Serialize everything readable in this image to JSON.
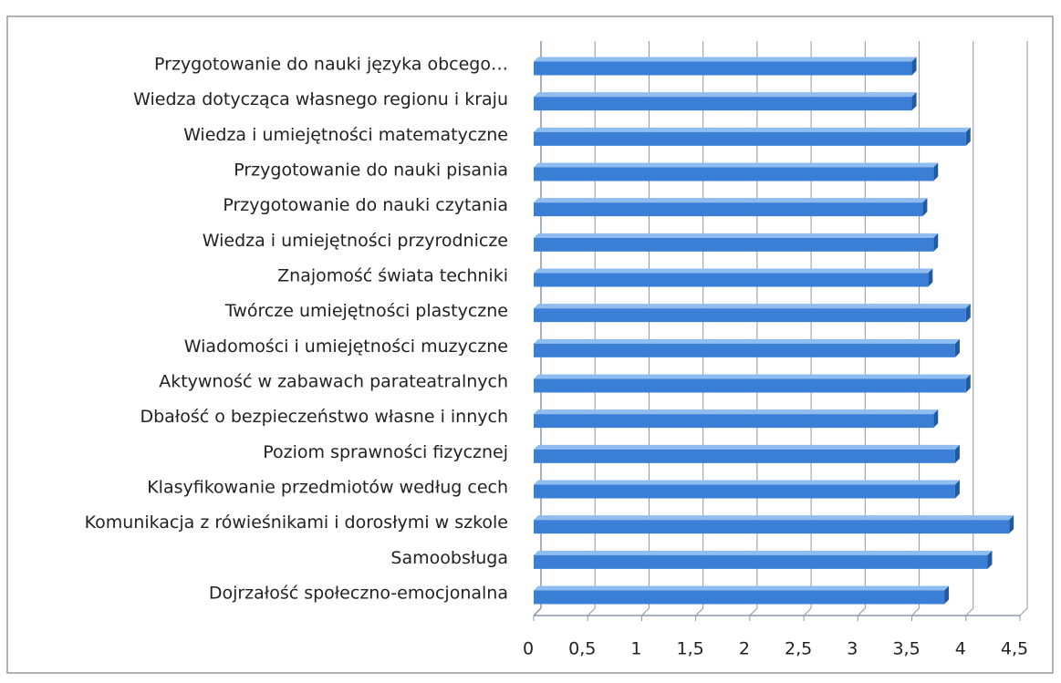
{
  "chart_data": {
    "type": "bar",
    "orientation": "horizontal",
    "categories": [
      "Przygotowanie do nauki języka obcego…",
      "Wiedza dotycząca własnego regionu i kraju",
      "Wiedza i umiejętności matematyczne",
      "Przygotowanie do nauki pisania",
      "Przygotowanie do nauki czytania",
      "Wiedza i umiejętności przyrodnicze",
      "Znajomość świata techniki",
      "Twórcze umiejętności plastyczne",
      "Wiadomości i umiejętności muzyczne",
      "Aktywność w zabawach parateatralnych",
      "Dbałość o bezpieczeństwo własne i innych",
      "Poziom sprawności fizycznej",
      "Klasyfikowanie przedmiotów według cech",
      "Komunikacja z rówieśnikami i dorosłymi w szkole",
      "Samoobsługa",
      "Dojrzałość społeczno-emocjonalna"
    ],
    "values": [
      3.5,
      3.5,
      4.0,
      3.7,
      3.6,
      3.7,
      3.65,
      4.0,
      3.9,
      4.0,
      3.7,
      3.9,
      3.9,
      4.4,
      4.2,
      3.8
    ],
    "color": "#3a7fd5",
    "xlim": [
      0,
      4.5
    ],
    "xticks": [
      0,
      {
        "value": 0.5,
        "label": "0,5"
      },
      1,
      {
        "value": 1.5,
        "label": "1,5"
      },
      2,
      {
        "value": 2.5,
        "label": "2,5"
      },
      3,
      {
        "value": 3.5,
        "label": "3,5"
      },
      4,
      {
        "value": 4.5,
        "label": "4,5"
      }
    ],
    "grid": true
  }
}
